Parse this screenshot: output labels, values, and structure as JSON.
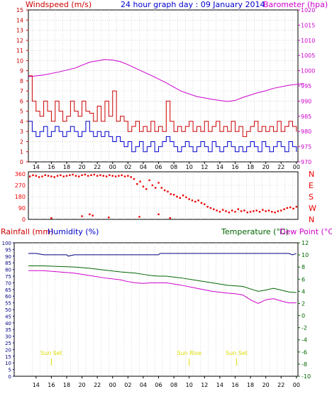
{
  "colors": {
    "frame": "#000000",
    "grid": "#c0c0c0",
    "wind": "#cc0000",
    "gust": "#cc0000",
    "wind_avg": "#0000cc",
    "baro": "#cc00cc",
    "dir": "#ee0000",
    "humidity": "#000080",
    "temperature": "#006600",
    "dewpoint": "#cc00cc",
    "suntext": "#dddd00",
    "rain_axis": "#000080",
    "temp_axis": "#006600"
  },
  "header": {
    "left_label": "Windspeed (m/s)",
    "center_label": "24 hour graph day : 09 January 2014",
    "right_label": "Barometer (hpa)"
  },
  "bottom_header": {
    "rain_label": "Rainfall (mm)",
    "humidity_label": "Humidity (%)",
    "temp_label": "Temperature (°C)",
    "dew_label": "Dew Point (°C)"
  },
  "time_ticks": [
    "14",
    "16",
    "18",
    "20",
    "22",
    "00",
    "02",
    "04",
    "06",
    "08",
    "10",
    "12",
    "14",
    "16",
    "18",
    "20",
    "22",
    "00"
  ],
  "chart_data": [
    {
      "type": "line",
      "name": "wind-barometer",
      "x_hours_start": "13:00",
      "ylim_left": [
        0,
        15
      ],
      "yticks_left": [
        "0",
        "1",
        "2",
        "3",
        "4",
        "5",
        "6",
        "7",
        "8",
        "9",
        "10",
        "11",
        "12",
        "13",
        "14",
        "15"
      ],
      "ylim_right": [
        970,
        1020
      ],
      "yticks_right": [
        "970",
        "975",
        "980",
        "985",
        "990",
        "995",
        "1000",
        "1005",
        "1010",
        "1015",
        "1020"
      ],
      "series": [
        {
          "key": "baro",
          "x": [
            0,
            2,
            4,
            6,
            8,
            10,
            11,
            12,
            13,
            14,
            16,
            18,
            20,
            22,
            24,
            25,
            26,
            27,
            28,
            29,
            30,
            31,
            32,
            34,
            36
          ],
          "values": [
            998,
            998.6,
            999.6,
            1000.8,
            1002.8,
            1003.7,
            1003.5,
            1003,
            1002,
            1000.8,
            998.5,
            996,
            993.2,
            991.5,
            990.6,
            990.2,
            989.9,
            990.2,
            991.2,
            992,
            992.8,
            993.4,
            994.2,
            995.2,
            995.8
          ]
        },
        {
          "key": "gust",
          "x": [
            0,
            0.5,
            1,
            1.5,
            2,
            2.5,
            3,
            3.5,
            4,
            4.5,
            5,
            5.5,
            6,
            6.5,
            7,
            7.5,
            8,
            8.5,
            9,
            9.5,
            10,
            10.5,
            11,
            11.5,
            12,
            12.5,
            13,
            13.5,
            14,
            14.5,
            15,
            15.5,
            16,
            16.5,
            17,
            17.5,
            18,
            18.5,
            19,
            19.5,
            20,
            20.5,
            21,
            21.5,
            22,
            22.5,
            23,
            23.5,
            24,
            24.5,
            25,
            25.5,
            26,
            26.5,
            27,
            27.5,
            28,
            28.5,
            29,
            29.5,
            30,
            30.5,
            31,
            31.5,
            32,
            32.5,
            33,
            33.5,
            34,
            34.5,
            35
          ],
          "values": [
            8.5,
            6,
            5,
            4.5,
            6,
            5,
            4,
            6,
            5,
            4,
            4.5,
            6,
            5,
            4.5,
            6,
            5,
            4.8,
            4,
            5.5,
            4,
            6,
            4.5,
            7,
            4,
            4.5,
            4,
            3,
            3.5,
            4,
            3,
            3.5,
            3,
            4,
            3,
            3.5,
            3,
            6,
            4,
            3,
            3.5,
            3,
            3.5,
            4,
            3,
            3.5,
            3,
            4,
            3,
            3.5,
            4,
            3,
            3.5,
            3,
            4,
            3,
            3.5,
            2.5,
            3,
            3.5,
            4,
            3,
            3.5,
            3,
            3.5,
            3,
            4,
            3,
            3.5,
            4,
            3.5,
            3
          ]
        },
        {
          "key": "wind_avg",
          "x": [
            0,
            0.5,
            1,
            1.5,
            2,
            2.5,
            3,
            3.5,
            4,
            4.5,
            5,
            5.5,
            6,
            6.5,
            7,
            7.5,
            8,
            8.5,
            9,
            9.5,
            10,
            10.5,
            11,
            11.5,
            12,
            12.5,
            13,
            13.5,
            14,
            14.5,
            15,
            15.5,
            16,
            16.5,
            17,
            17.5,
            18,
            18.5,
            19,
            19.5,
            20,
            20.5,
            21,
            21.5,
            22,
            22.5,
            23,
            23.5,
            24,
            24.5,
            25,
            25.5,
            26,
            26.5,
            27,
            27.5,
            28,
            28.5,
            29,
            29.5,
            30,
            30.5,
            31,
            31.5,
            32,
            32.5,
            33,
            33.5,
            34,
            34.5,
            35
          ],
          "values": [
            4,
            3,
            2.5,
            3,
            3.5,
            2.5,
            3,
            3.5,
            3,
            2.5,
            3,
            3.5,
            3,
            2.5,
            3,
            4,
            3,
            2.5,
            3,
            2.5,
            3,
            2.5,
            2,
            2.5,
            2,
            1.5,
            2,
            1,
            1.5,
            2,
            1,
            1.5,
            2,
            1,
            1.5,
            2,
            2.5,
            2,
            1.5,
            1,
            1.5,
            2,
            1.5,
            1,
            1.5,
            2,
            1.5,
            1,
            2,
            1.5,
            1,
            1.5,
            2,
            1.5,
            1,
            1.5,
            1,
            1.5,
            2,
            1.5,
            1,
            2,
            1.5,
            1,
            1.5,
            2,
            1.5,
            1,
            2,
            1.5,
            1
          ]
        }
      ]
    },
    {
      "type": "scatter",
      "name": "wind-direction",
      "ylim": [
        0,
        360
      ],
      "yticks": [
        "0",
        "90",
        "180",
        "270",
        "360"
      ],
      "compass": [
        "N",
        "W",
        "S",
        "E",
        "N"
      ],
      "x": [
        0.2,
        0.6,
        1,
        1.4,
        1.8,
        2.2,
        2.6,
        3,
        3.4,
        3.8,
        4.2,
        4.6,
        5,
        5.4,
        5.8,
        6.2,
        6.6,
        7,
        7.4,
        7.8,
        8.2,
        8.6,
        9,
        9.4,
        9.8,
        10.2,
        10.6,
        11,
        11.4,
        11.8,
        12.2,
        12.6,
        13,
        13.4,
        13.8,
        14.2,
        14.6,
        15,
        15.4,
        15.8,
        16.2,
        16.6,
        17,
        17.4,
        17.8,
        18.2,
        18.6,
        19,
        19.4,
        19.8,
        20.2,
        20.6,
        21,
        21.4,
        21.8,
        22.2,
        22.6,
        23,
        23.4,
        23.8,
        24.2,
        24.6,
        25,
        25.4,
        25.8,
        26.2,
        26.6,
        27,
        27.4,
        27.8,
        28.2,
        28.6,
        29,
        29.4,
        29.8,
        30.2,
        30.6,
        31,
        31.4,
        31.8,
        32.2,
        32.6,
        33,
        33.4,
        33.8,
        34.2,
        34.6,
        35,
        3,
        7,
        8,
        8.4,
        10.5,
        14.5,
        17,
        18.5
      ],
      "values": [
        340,
        350,
        345,
        335,
        340,
        350,
        345,
        340,
        335,
        345,
        350,
        340,
        345,
        350,
        355,
        345,
        340,
        350,
        355,
        345,
        350,
        355,
        345,
        350,
        345,
        340,
        350,
        345,
        340,
        345,
        350,
        340,
        345,
        335,
        320,
        280,
        300,
        260,
        240,
        310,
        270,
        250,
        290,
        250,
        230,
        220,
        200,
        195,
        180,
        170,
        190,
        175,
        160,
        150,
        140,
        150,
        130,
        120,
        100,
        90,
        80,
        70,
        60,
        75,
        65,
        55,
        70,
        60,
        80,
        65,
        70,
        55,
        60,
        65,
        70,
        60,
        75,
        65,
        70,
        60,
        55,
        65,
        70,
        80,
        90,
        95,
        85,
        100,
        10,
        25,
        40,
        30,
        15,
        20,
        40,
        10
      ]
    },
    {
      "type": "line",
      "name": "humidity-temperature",
      "ylim_left": [
        0,
        100
      ],
      "yticks_left": [
        "0",
        "5",
        "10",
        "15",
        "20",
        "25",
        "30",
        "35",
        "40",
        "45",
        "50",
        "55",
        "60",
        "65",
        "70",
        "75",
        "80",
        "85",
        "90",
        "95",
        "100"
      ],
      "ylim_right": [
        -10,
        12
      ],
      "yticks_right": [
        "-10",
        "-8",
        "-6",
        "-4",
        "-2",
        "0",
        "2",
        "4",
        "6",
        "8",
        "10",
        "12"
      ],
      "annotations": [
        {
          "text": "Sun Set",
          "x": 3
        },
        {
          "text": "Sun Rise",
          "x": 21
        },
        {
          "text": "Sun Set",
          "x": 27.2
        }
      ],
      "series": [
        {
          "key": "humidity",
          "x": [
            0,
            1,
            2,
            4,
            5,
            5.2,
            6,
            8,
            10,
            12,
            14,
            16,
            17,
            17.2,
            18,
            20,
            22,
            24,
            26,
            28,
            30,
            32,
            34,
            34.5,
            35
          ],
          "values": [
            92,
            92,
            91,
            91,
            91,
            90,
            91,
            91,
            91,
            91,
            91,
            91,
            91,
            92,
            92,
            92,
            92,
            92,
            92,
            92,
            92,
            92,
            92,
            91,
            92
          ]
        },
        {
          "key": "temperature",
          "x": [
            0,
            2,
            4,
            6,
            8,
            10,
            12,
            14,
            15,
            16,
            17,
            18,
            20,
            22,
            24,
            26,
            27,
            28,
            29,
            30,
            31,
            32,
            33,
            34,
            35
          ],
          "values": [
            8.2,
            8.2,
            8.1,
            8,
            7.8,
            7.5,
            7.2,
            7,
            6.8,
            6.6,
            6.5,
            6.5,
            6.2,
            5.8,
            5.4,
            5,
            4.9,
            4.8,
            4.4,
            4,
            4.2,
            4.5,
            4.2,
            3.9,
            3.8
          ]
        },
        {
          "key": "dewpoint",
          "x": [
            0,
            2,
            4,
            6,
            8,
            10,
            12,
            13,
            14,
            15,
            16,
            18,
            20,
            22,
            24,
            26,
            27,
            28,
            29,
            30,
            31,
            32,
            33,
            34,
            35
          ],
          "values": [
            7.4,
            7.4,
            7.2,
            7,
            6.6,
            6.2,
            5.9,
            5.6,
            5.4,
            5.3,
            5.4,
            5.4,
            5,
            4.5,
            4,
            3.7,
            3.6,
            3.4,
            2.6,
            2,
            2.6,
            2.8,
            2.4,
            2.1,
            2.1
          ]
        }
      ]
    }
  ]
}
